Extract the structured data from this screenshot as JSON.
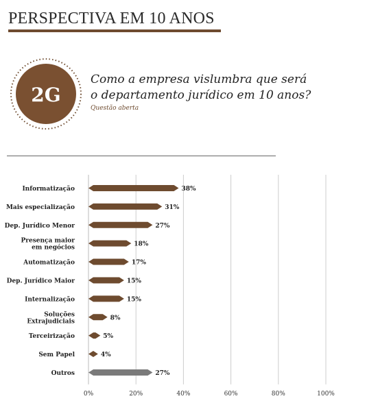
{
  "header": {
    "title": "PERSPECTIVA EM 10 ANOS"
  },
  "badge": {
    "label": "2G"
  },
  "question": {
    "line1": "Como a empresa vislumbra que será",
    "line2": "o departamento jurídico em 10 anos?",
    "note": "Questão aberta"
  },
  "colors": {
    "brown": "#6e4b2f",
    "gray": "#7a7a7a",
    "grid": "#cccccc"
  },
  "chart_data": {
    "type": "bar",
    "orientation": "horizontal",
    "categories": [
      [
        "Informatização"
      ],
      [
        "Mais especialização"
      ],
      [
        "Dep. Jurídico Menor"
      ],
      [
        "Presença maior",
        "em negócios"
      ],
      [
        "Automatização"
      ],
      [
        "Dep. Jurídico Maior"
      ],
      [
        "Internalização"
      ],
      [
        "Soluções",
        "Extrajudiciais"
      ],
      [
        "Terceirização"
      ],
      [
        "Sem Papel"
      ],
      [
        "Outros"
      ]
    ],
    "values": [
      38,
      31,
      27,
      18,
      17,
      15,
      15,
      8,
      5,
      4,
      27
    ],
    "value_labels": [
      "38%",
      "31%",
      "27%",
      "18%",
      "17%",
      "15%",
      "15%",
      "8%",
      "5%",
      "4%",
      "27%"
    ],
    "bar_colors": [
      "#6e4b2f",
      "#6e4b2f",
      "#6e4b2f",
      "#6e4b2f",
      "#6e4b2f",
      "#6e4b2f",
      "#6e4b2f",
      "#6e4b2f",
      "#6e4b2f",
      "#6e4b2f",
      "#7a7a7a"
    ],
    "xticks": [
      "0%",
      "20%",
      "40%",
      "60%",
      "80%",
      "100%"
    ],
    "xlim": [
      0,
      100
    ],
    "grid": true,
    "legend": "none"
  }
}
